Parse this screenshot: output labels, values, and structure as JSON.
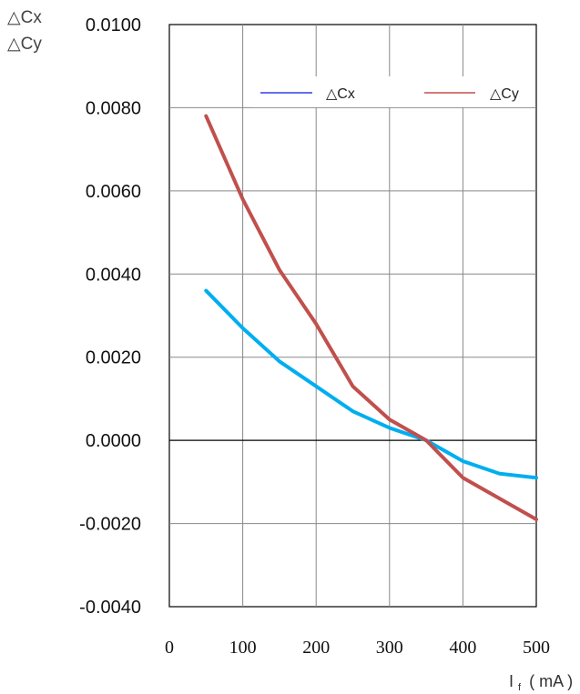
{
  "chart_data": {
    "type": "line",
    "ylabel_lines": [
      "△Cx",
      "△Cy"
    ],
    "xlabel_main": "I",
    "xlabel_sub": "f",
    "xlabel_unit": "( mA )",
    "xlim": [
      0,
      500
    ],
    "ylim": [
      -0.004,
      0.01
    ],
    "xticks": [
      0,
      100,
      200,
      300,
      400,
      500
    ],
    "xtick_labels": [
      "0",
      "100",
      "200",
      "300",
      "400",
      "500"
    ],
    "yticks": [
      0.01,
      0.008,
      0.006,
      0.004,
      0.002,
      0.0,
      -0.002,
      -0.004
    ],
    "ytick_labels": [
      "0.0100",
      "0.0080",
      "0.0060",
      "0.0040",
      "0.0020",
      "0.0000",
      "-0.0020",
      "-0.0040"
    ],
    "grid": true,
    "legend_position": "top-right",
    "series": [
      {
        "name": "△Cx",
        "legend_color": "#2f3fe6",
        "color": "#00aeef",
        "x": [
          50,
          100,
          150,
          200,
          250,
          300,
          350,
          400,
          450,
          500
        ],
        "y": [
          0.0036,
          0.0027,
          0.0019,
          0.0013,
          0.0007,
          0.0003,
          0.0,
          -0.0005,
          -0.0008,
          -0.0009
        ]
      },
      {
        "name": "△Cy",
        "legend_color": "#c0504d",
        "color": "#c0504d",
        "x": [
          50,
          100,
          150,
          200,
          250,
          300,
          350,
          400,
          450,
          500
        ],
        "y": [
          0.0078,
          0.0058,
          0.0041,
          0.0028,
          0.0013,
          0.0005,
          0.0,
          -0.0009,
          -0.0014,
          -0.0019
        ]
      }
    ]
  }
}
